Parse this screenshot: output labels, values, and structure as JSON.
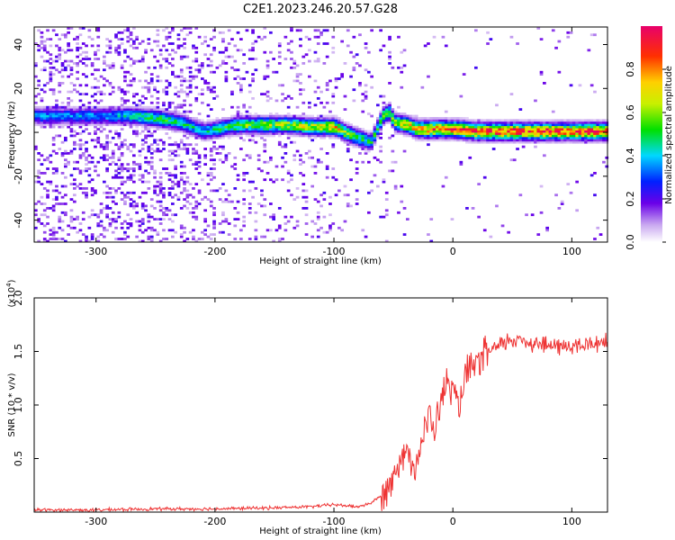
{
  "title": "C2E1.2023.246.20.57.G28",
  "chart_data": [
    {
      "type": "heatmap",
      "xlabel": "Height of straight line (km)",
      "ylabel": "Frequency (Hz)",
      "xlim": [
        -352,
        130
      ],
      "ylim": [
        -50,
        48
      ],
      "xticks": [
        -300,
        -200,
        -100,
        0,
        100
      ],
      "xtick_labels": [
        "-300",
        "-200",
        "-100",
        "0",
        "100"
      ],
      "yticks": [
        -40,
        -20,
        0,
        20,
        40
      ],
      "ytick_labels": [
        "-40",
        "-20",
        "0",
        "20",
        "40"
      ],
      "colorbar": {
        "label": "Normalized spectral amplitude",
        "range": [
          0,
          1
        ],
        "ticks": [
          0.0,
          0.2,
          0.4,
          0.6,
          0.8
        ],
        "tick_labels": [
          "0.0",
          "0.2",
          "0.4",
          "0.6",
          "0.8"
        ]
      },
      "ridge": {
        "x": [
          -290,
          -270,
          -250,
          -230,
          -210,
          -200,
          -180,
          -160,
          -140,
          -120,
          -100,
          -90,
          -80,
          -70,
          -65,
          -60,
          -55,
          -50,
          -40,
          -30,
          -20,
          0,
          20,
          50,
          80,
          110,
          130
        ],
        "y": [
          7,
          7,
          6,
          4,
          0,
          1,
          3,
          3,
          3,
          2,
          2,
          -1,
          -3,
          -5,
          1,
          7,
          9,
          4,
          3,
          1,
          1,
          1,
          0,
          0,
          0,
          0,
          0
        ],
        "amplitude": [
          0.35,
          0.45,
          0.5,
          0.45,
          0.4,
          0.45,
          0.55,
          0.6,
          0.6,
          0.65,
          0.7,
          0.6,
          0.5,
          0.45,
          0.5,
          0.5,
          0.55,
          0.6,
          0.7,
          0.75,
          0.8,
          0.85,
          0.85,
          0.9,
          0.9,
          0.88,
          0.85
        ]
      }
    },
    {
      "type": "line",
      "xlabel": "Height of straight line (km)",
      "ylabel": "SNR (10 * v/v)",
      "y_multiplier": "(x10",
      "y_multiplier_exp": "4",
      "y_multiplier_close": ")",
      "xlim": [
        -352,
        130
      ],
      "ylim": [
        0,
        2.0
      ],
      "xticks": [
        -300,
        -200,
        -100,
        0,
        100
      ],
      "xtick_labels": [
        "-300",
        "-200",
        "-100",
        "0",
        "100"
      ],
      "yticks": [
        0.5,
        1.0,
        1.5,
        2.0
      ],
      "ytick_labels": [
        "0.5",
        "1.0",
        "1.5",
        "2.0"
      ],
      "color": "#ee3333",
      "series": [
        {
          "x": [
            -352,
            -300,
            -250,
            -200,
            -150,
            -120,
            -100,
            -80,
            -70,
            -60,
            -55,
            -50,
            -45,
            -40,
            -35,
            -30,
            -25,
            -20,
            -15,
            -10,
            -5,
            0,
            5,
            10,
            20,
            30,
            40,
            50,
            60,
            70,
            80,
            90,
            100,
            110,
            120,
            130
          ],
          "values": [
            0.02,
            0.02,
            0.03,
            0.03,
            0.04,
            0.05,
            0.07,
            0.05,
            0.08,
            0.15,
            0.25,
            0.35,
            0.5,
            0.6,
            0.45,
            0.5,
            0.7,
            0.9,
            0.75,
            1.05,
            1.2,
            1.15,
            0.95,
            1.25,
            1.4,
            1.5,
            1.55,
            1.62,
            1.6,
            1.58,
            1.55,
            1.55,
            1.55,
            1.55,
            1.58,
            1.6
          ]
        }
      ]
    }
  ]
}
